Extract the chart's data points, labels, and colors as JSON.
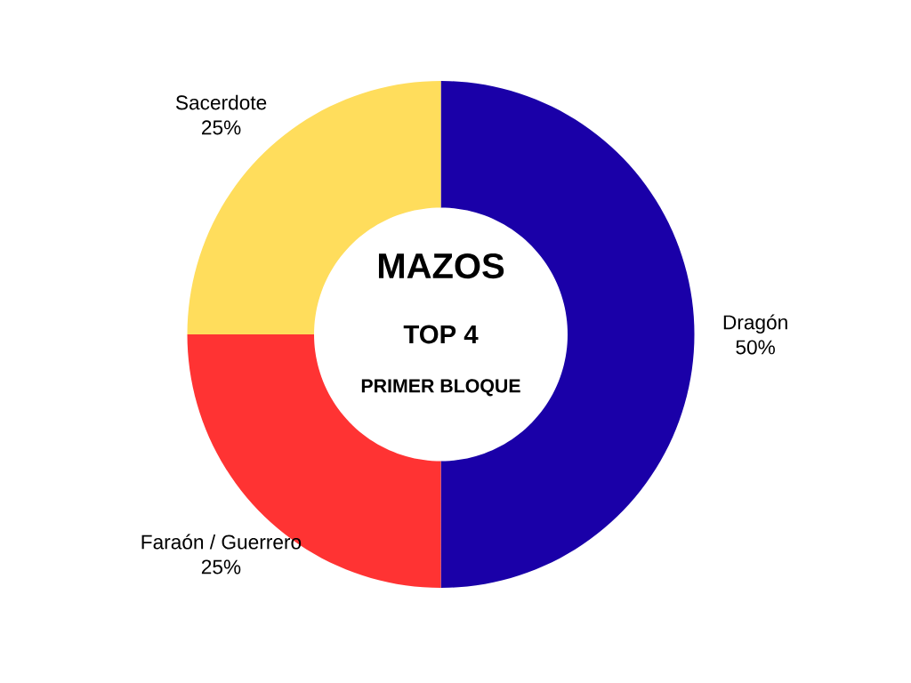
{
  "chart_data": {
    "type": "donut",
    "title": "MAZOS",
    "subtitle": "TOP 4",
    "annotations": [
      "PRIMER BLOQUE"
    ],
    "categories": [
      "Dragón",
      "Faraón / Guerrero",
      "Sacerdote"
    ],
    "values": [
      50,
      25,
      25
    ],
    "colors": [
      "#1a00a8",
      "#ff3333",
      "#ffdd5c"
    ],
    "value_labels": [
      "50%",
      "25%",
      "25%"
    ]
  }
}
